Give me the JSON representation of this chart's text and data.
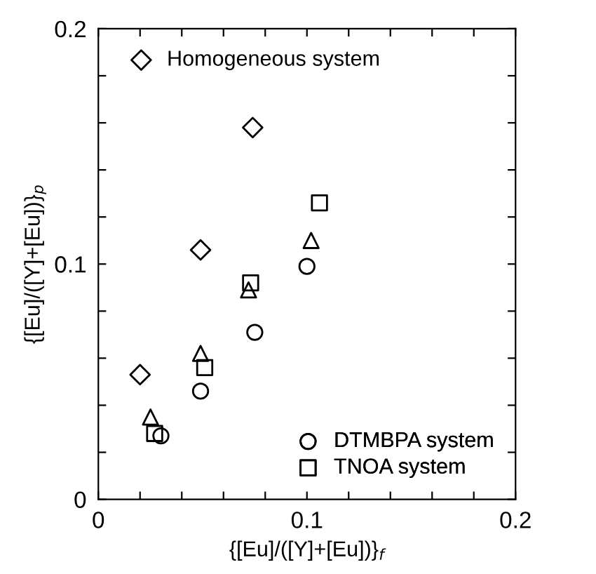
{
  "chart_data": {
    "type": "scatter",
    "xlabel": "{[Eu]/([Y]+[Eu])}$_{f}$",
    "ylabel": "{[Eu]/([Y]+[Eu])}$_{p}$",
    "xlim": [
      0,
      0.2
    ],
    "ylim": [
      0,
      0.2
    ],
    "xticks": [
      0,
      {
        "value": 0.02,
        "label": null
      },
      {
        "value": 0.04,
        "label": null
      },
      {
        "value": 0.06,
        "label": null
      },
      {
        "value": 0.08,
        "label": null
      },
      0.1,
      {
        "value": 0.12,
        "label": null
      },
      {
        "value": 0.14,
        "label": null
      },
      {
        "value": 0.16,
        "label": null
      },
      {
        "value": 0.18,
        "label": null
      },
      0.2
    ],
    "yticks": [
      0,
      {
        "value": 0.02,
        "label": null
      },
      {
        "value": 0.04,
        "label": null
      },
      {
        "value": 0.06,
        "label": null
      },
      {
        "value": 0.08,
        "label": null
      },
      0.1,
      {
        "value": 0.12,
        "label": null
      },
      {
        "value": 0.14,
        "label": null
      },
      {
        "value": 0.16,
        "label": null
      },
      {
        "value": 0.18,
        "label": null
      },
      0.2
    ],
    "grid": false,
    "legend": [
      "top left",
      "bottom right",
      "bottom right",
      "bottom right"
    ],
    "series": [
      {
        "name": "Homogeneous system",
        "marker": "diamond",
        "color": "#000000",
        "x": [
          0.02,
          0.049,
          0.074
        ],
        "values": [
          0.053,
          0.106,
          0.158
        ]
      },
      {
        "name": "DTMBPA system",
        "marker": "circle",
        "color": "#000000",
        "x": [
          0.03,
          0.049,
          0.075,
          0.1
        ],
        "values": [
          0.027,
          0.046,
          0.071,
          0.099
        ]
      },
      {
        "marker": "triangle",
        "color": "#000000",
        "x": [
          0.025,
          0.049,
          0.072,
          0.102
        ],
        "values": [
          0.035,
          0.062,
          0.089,
          0.11
        ]
      },
      {
        "name": "TNOA system",
        "marker": "square",
        "color": "#000000",
        "x": [
          0.027,
          0.051,
          0.073,
          0.106
        ],
        "values": [
          0.028,
          0.056,
          0.092,
          0.126
        ]
      }
    ]
  }
}
